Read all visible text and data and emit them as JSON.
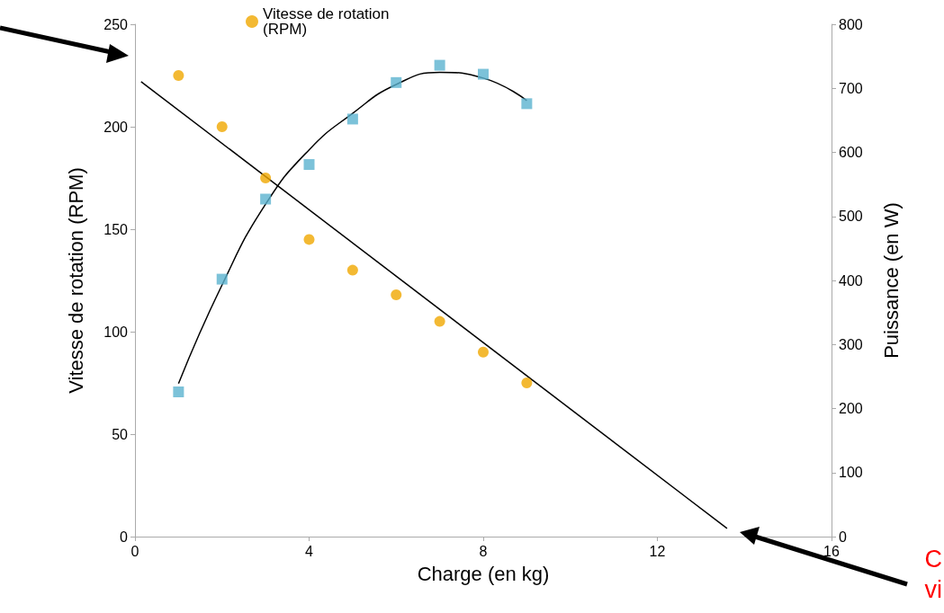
{
  "chart_data": {
    "type": "scatter",
    "xlabel": "Charge (en kg)",
    "ylabel": "Vitesse de rotation (RPM)",
    "y2label": "Puissance (en W)",
    "xlim": [
      0,
      16
    ],
    "xticks": [
      0,
      4,
      8,
      12,
      16
    ],
    "ylim": [
      0,
      250
    ],
    "yticks": [
      0,
      50,
      100,
      150,
      200,
      250
    ],
    "y2lim": [
      0,
      800
    ],
    "y2ticks": [
      0,
      100,
      200,
      300,
      400,
      500,
      600,
      700,
      800
    ],
    "grid": false,
    "legend": "top",
    "series": [
      {
        "name": "Vitesse de rotation (RPM)",
        "marker": "circle",
        "color": "#f0a800",
        "x": [
          1,
          2,
          3,
          4,
          5,
          6,
          7,
          8,
          9
        ],
        "values": [
          225,
          200,
          175,
          145,
          130,
          118,
          105,
          90,
          75
        ]
      },
      {
        "marker": "square",
        "axis": "y2",
        "color": "#5bb3cf",
        "x": [
          1,
          2,
          3,
          4,
          5,
          6,
          7,
          8,
          9
        ],
        "values": [
          226,
          402,
          527,
          581,
          652,
          709,
          736,
          722,
          676
        ]
      },
      {
        "type": "line",
        "marker": "none",
        "color": "#000000",
        "x": [
          0.14,
          13.6
        ],
        "values": [
          222,
          4
        ]
      },
      {
        "type": "line",
        "marker": "none",
        "axis": "y2",
        "color": "#000000",
        "x": [
          1,
          2,
          3,
          4,
          5,
          6,
          7,
          8,
          9
        ],
        "values": [
          239,
          393,
          519,
          604,
          661,
          706,
          725,
          716,
          681
        ]
      }
    ],
    "annotations": [
      "C",
      "vi"
    ]
  }
}
